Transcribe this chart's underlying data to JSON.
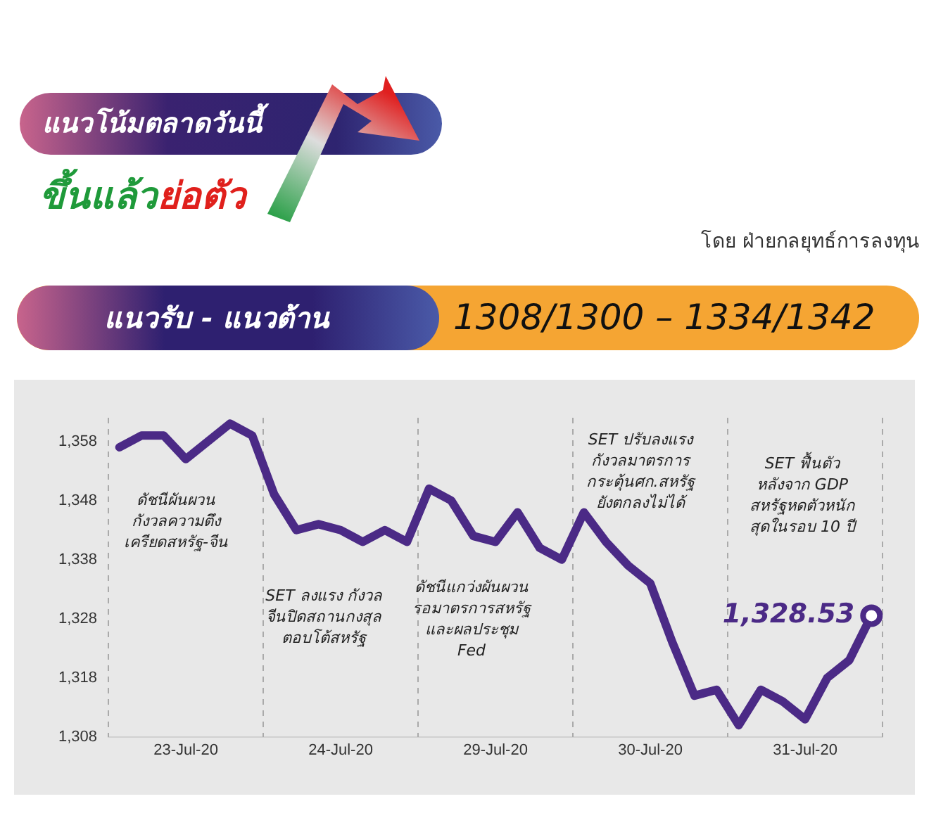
{
  "chart_data": {
    "type": "line",
    "title": "แนวโน้มตลาดวันนี้",
    "subtitle": "โดย ฝ่ายกลยุทธ์การลงทุน",
    "annotations": [
      "ขึ้นแล้ว",
      "ย่อตัว",
      "แนวรับ - แนวต้าน",
      "1308/1300 – 1334/1342",
      "ดัชนีผันผวน\nกังวลความตึง\nเครียดสหรัฐ-จีน",
      "SET ลงแรง กังวล\nจีนปิดสถานกงสุล\nตอบโต้สหรัฐ",
      "ดัชนีแกว่งผันผวน\nรอมาตรการสหรัฐ\nและผลประชุม\nFed",
      "SET ปรับลงแรง\nกังวลมาตรการ\nกระตุ้นศก.สหรัฐ\nยังตกลงไม่ได้",
      "SET ฟื้นตัว\nหลังจาก GDP\nสหรัฐหดตัวหนัก\nสุดในรอบ 10 ปี"
    ],
    "categories": [
      null,
      null,
      null,
      "23-Jul-20",
      null,
      null,
      null,
      null,
      null,
      null,
      "24-Jul-20",
      null,
      null,
      null,
      null,
      null,
      null,
      "29-Jul-20",
      null,
      null,
      null,
      null,
      null,
      null,
      "30-Jul-20",
      null,
      null,
      null,
      null,
      null,
      null,
      "31-Jul-20",
      null,
      null,
      null
    ],
    "series": [
      {
        "color": "#4b2a86",
        "values": [
          1357,
          1359,
          1359,
          1355,
          1358,
          1361,
          1359,
          1349,
          1343,
          1344,
          1343,
          1341,
          1343,
          1341,
          1350,
          1348,
          1342,
          1341,
          1346,
          1340,
          1338,
          1346,
          1341,
          1337,
          1334,
          1324,
          1315,
          1316,
          1310,
          1316,
          1314,
          1311,
          1318,
          1321,
          1328.53
        ],
        "value_labels": [
          null,
          null,
          null,
          null,
          null,
          null,
          null,
          null,
          null,
          null,
          null,
          null,
          null,
          null,
          null,
          null,
          null,
          null,
          null,
          null,
          null,
          null,
          null,
          null,
          null,
          null,
          null,
          null,
          null,
          null,
          null,
          null,
          null,
          null,
          "1,328.53"
        ]
      }
    ],
    "ylim": [
      1308,
      1362
    ],
    "yticks": [
      {
        "value": 1308,
        "label": "1,308"
      },
      {
        "value": 1318,
        "label": "1,318"
      },
      {
        "value": 1328,
        "label": "1,328"
      },
      {
        "value": 1338,
        "label": "1,338"
      },
      {
        "value": 1348,
        "label": "1,348"
      },
      {
        "value": 1358,
        "label": "1,358"
      }
    ],
    "grid": false,
    "legend": false
  }
}
